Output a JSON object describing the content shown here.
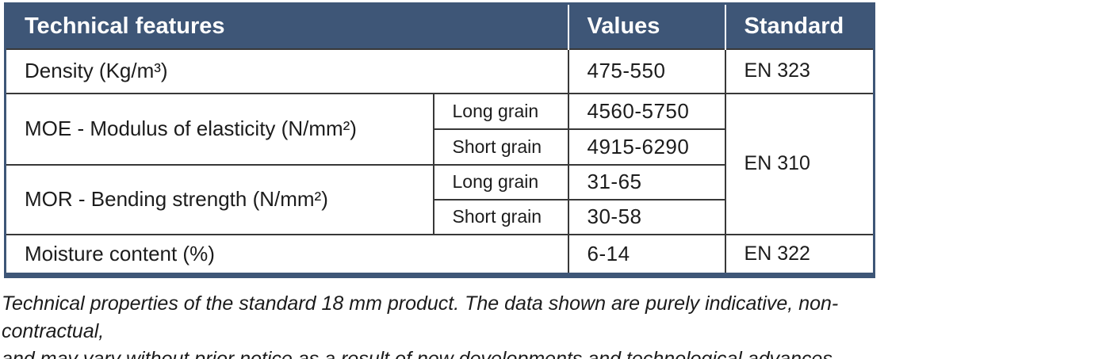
{
  "colors": {
    "header_bg": "#3e5677",
    "border_blue": "#3e5677",
    "inner_line": "#383838",
    "header_text": "#ffffff",
    "body_text": "#1c1c1c"
  },
  "table": {
    "headers": {
      "feature": "Technical features",
      "values": "Values",
      "standard": "Standard"
    },
    "rows": {
      "density": {
        "label": "Density (Kg/m³)",
        "value": "475-550",
        "standard": "EN 323"
      },
      "moe": {
        "label": "MOE - Modulus of elasticity (N/mm²)",
        "long_label": "Long grain",
        "long_value": "4560-5750",
        "short_label": "Short grain",
        "short_value": "4915-6290"
      },
      "mor": {
        "label": "MOR - Bending strength (N/mm²)",
        "long_label": "Long grain",
        "long_value": "31-65",
        "short_label": "Short grain",
        "short_value": "30-58"
      },
      "en310": "EN 310",
      "moisture": {
        "label": "Moisture content (%)",
        "value": "6-14",
        "standard": "EN 322"
      }
    }
  },
  "caption": {
    "line1": "Technical properties of the standard 18 mm product. The data shown are purely indicative, non-contractual,",
    "line2": "and may vary without prior notice as a result of new developments and technological advances."
  }
}
